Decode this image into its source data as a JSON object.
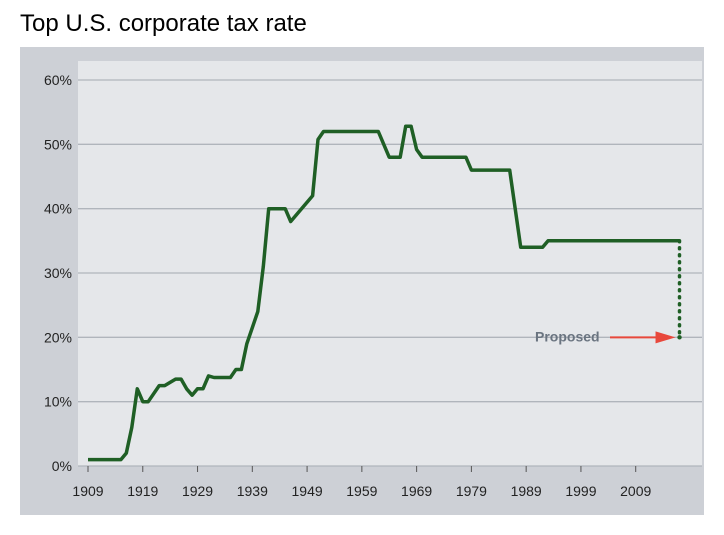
{
  "chart_data": {
    "type": "line",
    "title": "Top U.S. corporate tax rate",
    "xlabel": "",
    "ylabel": "",
    "xlim": [
      1909,
      2018
    ],
    "ylim": [
      0,
      60
    ],
    "x_ticks": [
      1909,
      1919,
      1929,
      1939,
      1949,
      1959,
      1969,
      1979,
      1989,
      1999,
      2009
    ],
    "y_ticks": [
      "0%",
      "10%",
      "20%",
      "30%",
      "40%",
      "50%",
      "60%"
    ],
    "y_tick_values": [
      0,
      10,
      20,
      30,
      40,
      50,
      60
    ],
    "grid": true,
    "series": [
      {
        "color": "#1f5f25",
        "x": [
          1909,
          1915,
          1916,
          1917,
          1918,
          1919,
          1920,
          1922,
          1923,
          1925,
          1926,
          1927,
          1928,
          1929,
          1930,
          1931,
          1932,
          1935,
          1936,
          1937,
          1938,
          1940,
          1941,
          1942,
          1945,
          1946,
          1950,
          1951,
          1952,
          1962,
          1964,
          1966,
          1967,
          1968,
          1969,
          1970,
          1978,
          1979,
          1986,
          1987,
          1988,
          1992,
          1993,
          2017
        ],
        "values": [
          1,
          1,
          2,
          6,
          12,
          10,
          10,
          12.5,
          12.5,
          13.5,
          13.5,
          12,
          11,
          12,
          12,
          14,
          13.75,
          13.75,
          15,
          15,
          19,
          24,
          31,
          40,
          40,
          38,
          42,
          50.75,
          52,
          52,
          48,
          48,
          52.8,
          52.8,
          49.2,
          48,
          48,
          46,
          46,
          40,
          34,
          34,
          35,
          35
        ]
      },
      {
        "color": "#1f5f25",
        "style": "dotted",
        "x": [
          2017,
          2017
        ],
        "values": [
          35,
          20
        ]
      }
    ],
    "annotations": [
      {
        "text": "Proposed",
        "x": 2017,
        "y": 20,
        "color": "#e8483c"
      }
    ]
  }
}
